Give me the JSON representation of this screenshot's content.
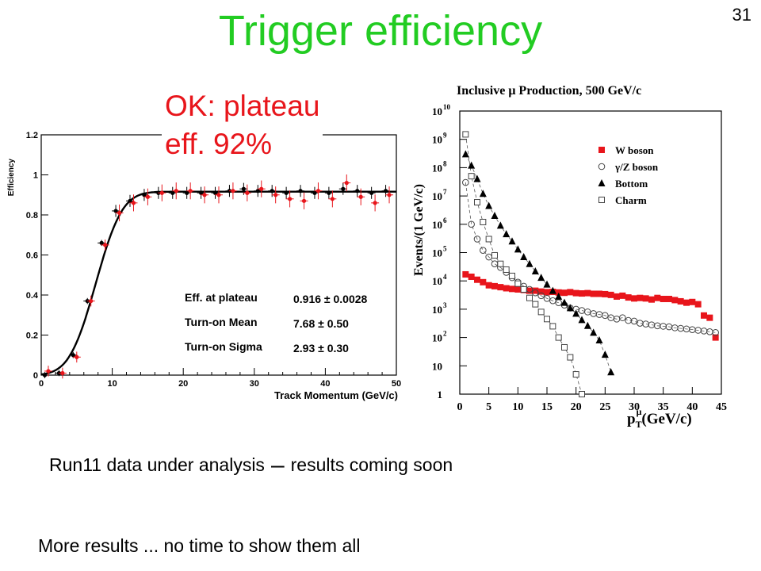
{
  "slide": {
    "title": "Trigger efficiency",
    "number": "31",
    "callout_line1": "OK: plateau",
    "callout_line2": "eff. 92%",
    "line1_part1": "Run11 data under analysis",
    "line1_dash": "–",
    "line1_part2": "results coming soon",
    "line2": "More results ... no time to show them all",
    "title_color": "#22cc22",
    "callout_color": "#e8151b"
  },
  "chart_data": [
    {
      "type": "scatter",
      "title": "",
      "xlabel": "Track Momentum (GeV/c)",
      "ylabel": "Efficiency",
      "xlim": [
        0,
        50
      ],
      "ylim": [
        0,
        1.2
      ],
      "xticks": [
        0,
        10,
        20,
        30,
        40,
        50
      ],
      "xtick_labels": [
        "0",
        "10",
        "20",
        "30",
        "40",
        "50"
      ],
      "yticks": [
        0,
        0.2,
        0.4,
        0.6,
        0.8,
        1,
        1.2
      ],
      "ytick_labels": [
        "0",
        "0.2",
        "0.4",
        "0.6",
        "0.8",
        "1",
        "1.2"
      ],
      "fit": {
        "plateau": 0.916,
        "mean": 7.68,
        "sigma": 2.93,
        "color": "#000000"
      },
      "series": [
        {
          "color": "#000000",
          "x": [
            0.5,
            2.5,
            4.5,
            6.5,
            8.5,
            10.5,
            12.5,
            14.5,
            16.5,
            18.5,
            20.5,
            22.5,
            24.5,
            26.5,
            28.5,
            30.5,
            32.5,
            34.5,
            36.5,
            38.5,
            40.5,
            42.5,
            44.5,
            46.5,
            48.5
          ],
          "y": [
            0.0,
            0.01,
            0.1,
            0.37,
            0.66,
            0.82,
            0.87,
            0.9,
            0.91,
            0.91,
            0.91,
            0.91,
            0.91,
            0.92,
            0.93,
            0.92,
            0.92,
            0.91,
            0.92,
            0.91,
            0.91,
            0.93,
            0.92,
            0.91,
            0.92
          ]
        },
        {
          "color": "#e8151b",
          "x": [
            1,
            3,
            5,
            7,
            9,
            11,
            13,
            15,
            17,
            19,
            21,
            23,
            25,
            27,
            29,
            31,
            33,
            35,
            37,
            39,
            41,
            43,
            45,
            47,
            49
          ],
          "y": [
            0.02,
            0.01,
            0.09,
            0.37,
            0.65,
            0.81,
            0.86,
            0.89,
            0.91,
            0.92,
            0.92,
            0.9,
            0.9,
            0.92,
            0.91,
            0.93,
            0.9,
            0.88,
            0.87,
            0.92,
            0.88,
            0.96,
            0.89,
            0.86,
            0.9
          ]
        }
      ],
      "stats": [
        {
          "label": "Eff. at plateau",
          "value": "0.916 ± 0.0028"
        },
        {
          "label": "Turn-on Mean",
          "value": "7.68 ± 0.50"
        },
        {
          "label": "Turn-on Sigma",
          "value": "2.93 ± 0.30"
        }
      ]
    },
    {
      "type": "scatter",
      "title": "Inclusive μ Production, 500 GeV/c",
      "xlabel": "p_T^μ (GeV/c)",
      "xlabel_main": "p",
      "xlabel_sub": "T",
      "xlabel_sup": "μ",
      "xlabel_unit": "(GeV/c)",
      "ylabel": "Events/(1 GeV/c)",
      "log_y": true,
      "xlim": [
        0,
        45
      ],
      "ylim": [
        1,
        10000000000
      ],
      "xticks": [
        0,
        5,
        10,
        15,
        20,
        25,
        30,
        35,
        40,
        45
      ],
      "xtick_labels": [
        "0",
        "5",
        "10",
        "15",
        "20",
        "25",
        "30",
        "35",
        "40",
        "45"
      ],
      "ytick_exp": [
        0,
        1,
        2,
        3,
        4,
        5,
        6,
        7,
        8,
        9,
        10
      ],
      "ytick_base": [
        "1",
        "10",
        "10",
        "10",
        "10",
        "10",
        "10",
        "10",
        "10",
        "10",
        "10"
      ],
      "ytick_sup": [
        "",
        "",
        "2",
        "3",
        "4",
        "5",
        "6",
        "7",
        "8",
        "9",
        "10"
      ],
      "series": [
        {
          "name": "W boson",
          "marker": "square-filled",
          "color": "#e8151b",
          "x": [
            1,
            2,
            3,
            4,
            5,
            6,
            7,
            8,
            9,
            10,
            11,
            12,
            13,
            14,
            15,
            16,
            17,
            18,
            19,
            20,
            21,
            22,
            23,
            24,
            25,
            26,
            27,
            28,
            29,
            30,
            31,
            32,
            33,
            34,
            35,
            36,
            37,
            38,
            39,
            40,
            41,
            42,
            43,
            44
          ],
          "y": [
            17000,
            14000,
            11000,
            9000,
            7000,
            6500,
            6000,
            5500,
            5200,
            5000,
            4800,
            4500,
            4500,
            4200,
            4000,
            4100,
            3900,
            3800,
            4000,
            3700,
            3600,
            3700,
            3500,
            3500,
            3400,
            3200,
            2800,
            3000,
            2600,
            2400,
            2500,
            2400,
            2200,
            2500,
            2300,
            2300,
            2100,
            1900,
            1700,
            1800,
            1500,
            600,
            500,
            100
          ]
        },
        {
          "name": "γ/Z boson",
          "marker": "circle-open",
          "color": "#444444",
          "x": [
            1,
            2,
            3,
            4,
            5,
            6,
            7,
            8,
            9,
            10,
            11,
            12,
            13,
            14,
            15,
            16,
            17,
            18,
            19,
            20,
            21,
            22,
            23,
            24,
            25,
            26,
            27,
            28,
            29,
            30,
            31,
            32,
            33,
            34,
            35,
            36,
            37,
            38,
            39,
            40,
            41,
            42,
            43,
            44
          ],
          "y": [
            30000000,
            1000000,
            300000,
            120000,
            70000,
            40000,
            30000,
            20000,
            13000,
            9000,
            6500,
            5000,
            3800,
            3000,
            2400,
            2000,
            1700,
            1400,
            1100,
            1000,
            900,
            800,
            700,
            650,
            600,
            500,
            450,
            500,
            400,
            380,
            320,
            300,
            280,
            260,
            250,
            240,
            220,
            210,
            200,
            190,
            180,
            170,
            160,
            150
          ]
        },
        {
          "name": "Bottom",
          "marker": "triangle-filled",
          "color": "#000000",
          "x": [
            1,
            2,
            3,
            4,
            5,
            6,
            7,
            8,
            9,
            10,
            11,
            12,
            13,
            14,
            15,
            16,
            17,
            18,
            19,
            20,
            21,
            22,
            23,
            24,
            25,
            26
          ],
          "y": [
            300000000,
            120000000,
            40000000,
            12000000,
            4500000,
            2000000,
            900000,
            450000,
            250000,
            130000,
            70000,
            40000,
            22000,
            13000,
            7500,
            4500,
            2800,
            1700,
            1100,
            700,
            420,
            260,
            150,
            80,
            25,
            6
          ]
        },
        {
          "name": "Charm",
          "marker": "square-open",
          "color": "#444444",
          "x": [
            1,
            2,
            3,
            4,
            5,
            6,
            7,
            8,
            9,
            10,
            11,
            12,
            13,
            14,
            15,
            16,
            17,
            18,
            19,
            20,
            21
          ],
          "y": [
            1500000000,
            50000000,
            6000000,
            1200000,
            300000,
            80000,
            40000,
            25000,
            15000,
            8000,
            5000,
            2500,
            1500,
            800,
            450,
            250,
            100,
            45,
            20,
            5,
            1
          ]
        }
      ]
    }
  ]
}
